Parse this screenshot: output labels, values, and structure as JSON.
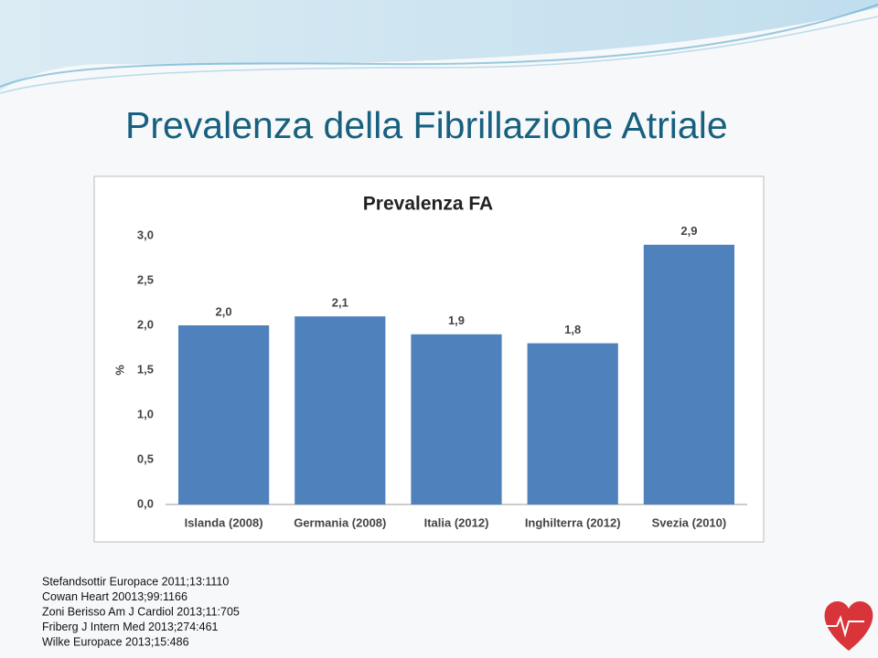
{
  "slide_title": "Prevalenza della Fibrillazione Atriale",
  "chart_data": {
    "type": "bar",
    "title": "Prevalenza FA",
    "y_label": "%",
    "categories": [
      "Islanda (2008)",
      "Germania (2008)",
      "Italia (2012)",
      "Inghilterra (2012)",
      "Svezia (2010)"
    ],
    "values": [
      2.0,
      2.1,
      1.9,
      1.8,
      2.9
    ],
    "value_labels": [
      "2,0",
      "2,1",
      "1,9",
      "1,8",
      "2,9"
    ],
    "color": "#4f81bd",
    "ylim": [
      0,
      3
    ],
    "yticks": [
      {
        "value": 0,
        "label": "0,0"
      },
      {
        "value": 0.5,
        "label": "0,5"
      },
      {
        "value": 1,
        "label": "1,0"
      },
      {
        "value": 1.5,
        "label": "1,5"
      },
      {
        "value": 2,
        "label": "2,0"
      },
      {
        "value": 2.5,
        "label": "2,5"
      },
      {
        "value": 3,
        "label": "3,0"
      }
    ],
    "grid": false
  },
  "references": [
    "Stefandsottir Europace 2011;13:1110",
    "Cowan Heart 20013;99:1166",
    "Zoni Berisso Am J Cardiol 2013;11:705",
    "Friberg J Intern Med 2013;274:461",
    "Wilke Europace 2013;15:486"
  ]
}
